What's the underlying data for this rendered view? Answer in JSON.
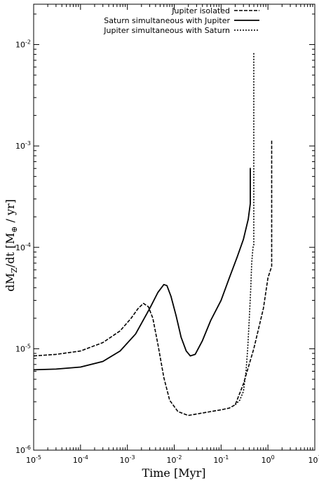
{
  "chart_data": {
    "type": "line",
    "title": "",
    "xlabel": "Time [Myr]",
    "ylabel": "dMZ/dt [M⊕ / yr]",
    "ylabel_parts": {
      "pre": "dM",
      "sub": "Z",
      "mid": "/dt [M",
      "sub2": "⊕",
      "post": " / yr]"
    },
    "x_scale": "log",
    "y_scale": "log",
    "xlim": [
      1e-05,
      10
    ],
    "ylim": [
      1e-06,
      0.025
    ],
    "x_ticks": [
      {
        "base": "10",
        "exp": "-5",
        "value": 1e-05
      },
      {
        "base": "10",
        "exp": "-4",
        "value": 0.0001
      },
      {
        "base": "10",
        "exp": "-3",
        "value": 0.001
      },
      {
        "base": "10",
        "exp": "-2",
        "value": 0.01
      },
      {
        "base": "10",
        "exp": "-1",
        "value": 0.1
      },
      {
        "base": "10",
        "exp": "0",
        "value": 1
      },
      {
        "base": "10",
        "exp": "1",
        "value": 10
      }
    ],
    "y_ticks": [
      {
        "base": "10",
        "exp": "-6",
        "value": 1e-06
      },
      {
        "base": "10",
        "exp": "-5",
        "value": 1e-05
      },
      {
        "base": "10",
        "exp": "-4",
        "value": 0.0001
      },
      {
        "base": "10",
        "exp": "-3",
        "value": 0.001
      },
      {
        "base": "10",
        "exp": "-2",
        "value": 0.01
      }
    ],
    "legend_position": "top-right",
    "grid": false,
    "series": [
      {
        "name": "Jupiter isolated",
        "style": "dashed",
        "x": [
          1e-05,
          3e-05,
          0.0001,
          0.0003,
          0.0007,
          0.0012,
          0.0017,
          0.0022,
          0.0028,
          0.0035,
          0.0045,
          0.006,
          0.008,
          0.012,
          0.02,
          0.035,
          0.06,
          0.1,
          0.15,
          0.2,
          0.3,
          0.5,
          0.8,
          1.0,
          1.2,
          1.2
        ],
        "y": [
          8.5e-06,
          8.8e-06,
          9.5e-06,
          1.15e-05,
          1.5e-05,
          2e-05,
          2.5e-05,
          2.8e-05,
          2.6e-05,
          2e-05,
          1.1e-05,
          5.2e-06,
          3.1e-06,
          2.4e-06,
          2.2e-06,
          2.3e-06,
          2.4e-06,
          2.5e-06,
          2.6e-06,
          2.8e-06,
          4.5e-06,
          1e-05,
          2.5e-05,
          5e-05,
          6.5e-05,
          0.00115
        ]
      },
      {
        "name": "Saturn simultaneous with Jupiter",
        "style": "solid",
        "x": [
          1e-05,
          3e-05,
          0.0001,
          0.0003,
          0.0007,
          0.0015,
          0.003,
          0.0045,
          0.006,
          0.007,
          0.0085,
          0.011,
          0.014,
          0.018,
          0.022,
          0.028,
          0.04,
          0.06,
          0.1,
          0.15,
          0.22,
          0.3,
          0.38,
          0.42,
          0.42,
          0.43
        ],
        "y": [
          6.2e-06,
          6.3e-06,
          6.6e-06,
          7.5e-06,
          9.5e-06,
          1.4e-05,
          2.5e-05,
          3.6e-05,
          4.3e-05,
          4.2e-05,
          3.3e-05,
          2.1e-05,
          1.3e-05,
          9.5e-06,
          8.5e-06,
          8.8e-06,
          1.2e-05,
          1.9e-05,
          3e-05,
          5e-05,
          8e-05,
          0.00012,
          0.00019,
          0.00027,
          0.0006,
          0.0006
        ]
      },
      {
        "name": "Jupiter simultaneous with Saturn",
        "style": "dotted",
        "x": [
          0.2,
          0.25,
          0.3,
          0.34,
          0.37,
          0.4,
          0.43,
          0.45,
          0.47,
          0.48,
          0.5,
          0.5
        ],
        "y": [
          2.8e-06,
          3.1e-06,
          3.8e-06,
          6e-06,
          1e-05,
          2e-05,
          4e-05,
          7e-05,
          9e-05,
          0.0001,
          0.000105,
          0.0085
        ]
      }
    ]
  }
}
